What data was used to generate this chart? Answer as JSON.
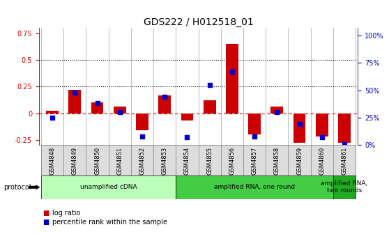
{
  "title": "GDS222 / H012518_01",
  "samples": [
    "GSM4848",
    "GSM4849",
    "GSM4850",
    "GSM4851",
    "GSM4852",
    "GSM4853",
    "GSM4854",
    "GSM4855",
    "GSM4856",
    "GSM4857",
    "GSM4858",
    "GSM4859",
    "GSM4860",
    "GSM4861"
  ],
  "log_ratio": [
    0.02,
    0.22,
    0.1,
    0.06,
    -0.16,
    0.17,
    -0.07,
    0.12,
    0.65,
    -0.2,
    0.06,
    -0.28,
    -0.22,
    -0.28
  ],
  "percentile": [
    25,
    48,
    38,
    30,
    8,
    44,
    7,
    55,
    67,
    8,
    30,
    19,
    7,
    1
  ],
  "bar_color": "#cc0000",
  "dot_color": "#0000cc",
  "ylim_left": [
    -0.3,
    0.8
  ],
  "ylim_right": [
    0,
    106.67
  ],
  "yticks_left": [
    -0.25,
    0.0,
    0.25,
    0.5,
    0.75
  ],
  "yticks_right_vals": [
    0,
    25,
    50,
    75,
    100
  ],
  "ytick_labels_left": [
    "-0.25",
    "0",
    "0.25",
    "0.5",
    "0.75"
  ],
  "ytick_labels_right": [
    "0%",
    "25%",
    "50%",
    "75%",
    "100%"
  ],
  "hlines_dotted": [
    0.25,
    0.5
  ],
  "hline_dashed": 0.0,
  "protocol_groups": [
    {
      "label": "unamplified cDNA",
      "start": 0,
      "end": 5,
      "color": "#bbffbb"
    },
    {
      "label": "amplified RNA, one round",
      "start": 6,
      "end": 12,
      "color": "#44cc44"
    },
    {
      "label": "amplified RNA,\ntwo rounds",
      "start": 13,
      "end": 13,
      "color": "#22aa22"
    }
  ],
  "protocol_label": "protocol",
  "legend_items": [
    {
      "label": "log ratio",
      "color": "#cc0000"
    },
    {
      "label": "percentile rank within the sample",
      "color": "#0000cc"
    }
  ],
  "bar_width": 0.55,
  "dot_size": 25,
  "title_fontsize": 10,
  "tick_fontsize": 7,
  "sample_fontsize": 6
}
